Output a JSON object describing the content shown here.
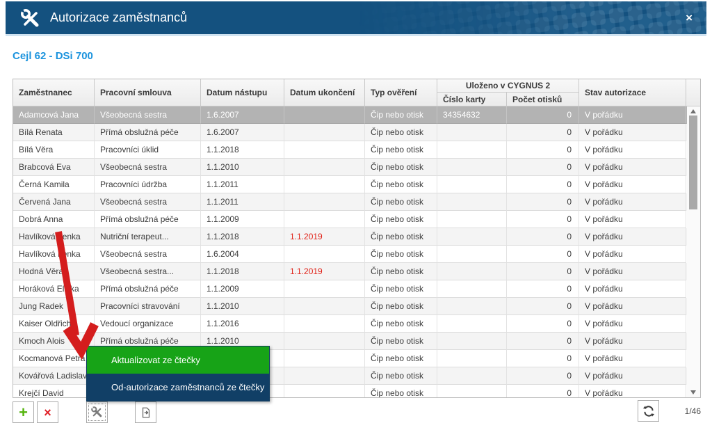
{
  "window": {
    "title": "Autorizace zaměstnanců",
    "subtitle": "Cejl 62 - DSi 700",
    "close_label": "×"
  },
  "table": {
    "headers": {
      "employee": "Zaměstnanec",
      "contract": "Pracovní smlouva",
      "start": "Datum nástupu",
      "end": "Datum ukončení",
      "verification": "Typ ověření",
      "group": "Uloženo v CYGNUS 2",
      "card": "Číslo karty",
      "prints": "Počet otisků",
      "status": "Stav autorizace"
    },
    "rows": [
      {
        "name": "Adamcová Jana",
        "contract": "Všeobecná sestra",
        "start": "1.6.2007",
        "end": "",
        "type": "Čip nebo otisk",
        "card": "34354632",
        "prints": "0",
        "status": "V pořádku",
        "selected": true
      },
      {
        "name": "Bílá Renata",
        "contract": "Přímá obslužná péče",
        "start": "1.6.2007",
        "end": "",
        "type": "Čip nebo otisk",
        "card": "",
        "prints": "0",
        "status": "V pořádku"
      },
      {
        "name": "Bílá Věra",
        "contract": "Pracovníci úklid",
        "start": "1.1.2018",
        "end": "",
        "type": "Čip nebo otisk",
        "card": "",
        "prints": "0",
        "status": "V pořádku"
      },
      {
        "name": "Brabcová Eva",
        "contract": "Všeobecná sestra",
        "start": "1.1.2010",
        "end": "",
        "type": "Čip nebo otisk",
        "card": "",
        "prints": "0",
        "status": "V pořádku"
      },
      {
        "name": "Černá Kamila",
        "contract": "Pracovníci údržba",
        "start": "1.1.2011",
        "end": "",
        "type": "Čip nebo otisk",
        "card": "",
        "prints": "0",
        "status": "V pořádku"
      },
      {
        "name": "Červená Jana",
        "contract": "Všeobecná sestra",
        "start": "1.1.2011",
        "end": "",
        "type": "Čip nebo otisk",
        "card": "",
        "prints": "0",
        "status": "V pořádku"
      },
      {
        "name": "Dobrá Anna",
        "contract": "Přímá obslužná péče",
        "start": "1.1.2009",
        "end": "",
        "type": "Čip nebo otisk",
        "card": "",
        "prints": "0",
        "status": "V pořádku"
      },
      {
        "name": "Havlíková Lenka",
        "contract": "Nutriční terapeut...",
        "start": "1.1.2018",
        "end": "1.1.2019",
        "end_red": true,
        "type": "Čip nebo otisk",
        "card": "",
        "prints": "0",
        "status": "V pořádku"
      },
      {
        "name": "Havlíková Lenka",
        "contract": "Všeobecná sestra",
        "start": "1.6.2004",
        "end": "",
        "type": "Čip nebo otisk",
        "card": "",
        "prints": "0",
        "status": "V pořádku"
      },
      {
        "name": "Hodná Věra",
        "contract": "Všeobecná sestra...",
        "start": "1.1.2018",
        "end": "1.1.2019",
        "end_red": true,
        "type": "Čip nebo otisk",
        "card": "",
        "prints": "0",
        "status": "V pořádku"
      },
      {
        "name": "Horáková Eliška",
        "contract": "Přímá obslužná péče",
        "start": "1.1.2009",
        "end": "",
        "type": "Čip nebo otisk",
        "card": "",
        "prints": "0",
        "status": "V pořádku"
      },
      {
        "name": "Jung Radek",
        "contract": "Pracovníci stravování",
        "start": "1.1.2010",
        "end": "",
        "type": "Čip nebo otisk",
        "card": "",
        "prints": "0",
        "status": "V pořádku"
      },
      {
        "name": "Kaiser Oldřich",
        "contract": "Vedoucí organizace",
        "start": "1.1.2016",
        "end": "",
        "type": "Čip nebo otisk",
        "card": "",
        "prints": "0",
        "status": "V pořádku"
      },
      {
        "name": "Kmoch Alois",
        "contract": "Přímá obslužná péče",
        "start": "1.1.2010",
        "end": "",
        "type": "Čip nebo otisk",
        "card": "",
        "prints": "0",
        "status": "V pořádku"
      },
      {
        "name": "Kocmanová Petra",
        "contract": "",
        "start": "",
        "end": "",
        "type": "Čip nebo otisk",
        "card": "",
        "prints": "0",
        "status": "V pořádku"
      },
      {
        "name": "Kovářová Ladislava",
        "contract": "",
        "start": "",
        "end": "",
        "type": "Čip nebo otisk",
        "card": "",
        "prints": "0",
        "status": "V pořádku"
      },
      {
        "name": "Krejčí David",
        "contract": "",
        "start": "",
        "end": "",
        "type": "Čip nebo otisk",
        "card": "",
        "prints": "0",
        "status": "V pořádku"
      }
    ]
  },
  "context_menu": {
    "items": [
      {
        "label": "Aktualizovat ze čtečky",
        "color": "#17a317"
      },
      {
        "label": "Od-autorizace zaměstnanců ze čtečky",
        "color": "#113f66"
      }
    ]
  },
  "toolbar": {
    "add_label": "+",
    "delete_label": "×",
    "pager": "1/46"
  },
  "colors": {
    "titlebar_blue": "#14517f",
    "subtitle_blue": "#1b93dd",
    "selected_row_gray": "#b3b3b3",
    "expired_date_red": "#e1251b",
    "menu_green": "#17a317",
    "menu_blue": "#113f66",
    "annotation_arrow_red": "#d41d1d",
    "add_green": "#54b40c",
    "delete_red": "#e01f26"
  }
}
